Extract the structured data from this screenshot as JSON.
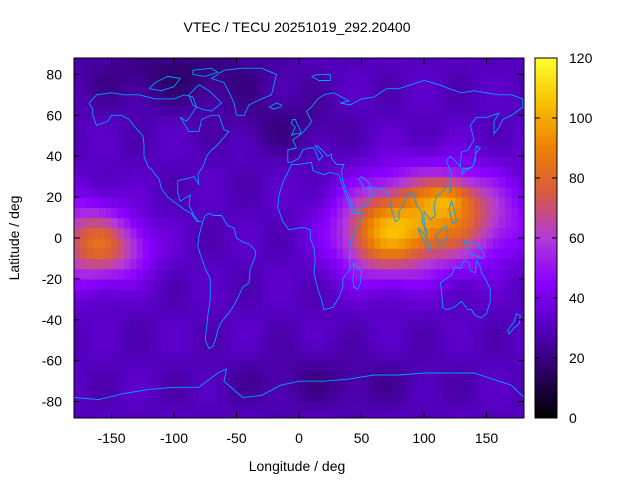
{
  "chart_data": {
    "type": "heatmap",
    "title": "VTEC / TECU 20251019_292.20400",
    "xlabel": "Longitude / deg",
    "ylabel": "Latitude / deg",
    "xlim": [
      -180,
      180
    ],
    "ylim": [
      -88,
      88
    ],
    "x_ticks": [
      -150,
      -100,
      -50,
      0,
      50,
      100,
      150
    ],
    "y_ticks": [
      -80,
      -60,
      -40,
      -20,
      0,
      20,
      40,
      60,
      80
    ],
    "colorbar": {
      "range": [
        0,
        120
      ],
      "ticks": [
        0,
        20,
        40,
        60,
        80,
        100,
        120
      ],
      "palette": [
        "#000000",
        "#2a0060",
        "#5500c0",
        "#8a00ff",
        "#b23ad8",
        "#d85a40",
        "#ee8000",
        "#f8c000",
        "#ffff30"
      ]
    },
    "grid": {
      "lon_step": 5,
      "lat_step": 5
    },
    "field_blobs": [
      {
        "lon": 110,
        "lat": 10,
        "peak": 58,
        "sigma_lon": 42,
        "sigma_lat": 16
      },
      {
        "lon": 120,
        "lat": 20,
        "peak": 22,
        "sigma_lon": 14,
        "sigma_lat": 6
      },
      {
        "lon": 65,
        "lat": 0,
        "peak": 40,
        "sigma_lon": 25,
        "sigma_lat": 14
      },
      {
        "lon": -170,
        "lat": -2,
        "peak": 42,
        "sigma_lon": 22,
        "sigma_lat": 14
      },
      {
        "lon": -140,
        "lat": -5,
        "peak": 22,
        "sigma_lon": 20,
        "sigma_lat": 10
      },
      {
        "lon": -95,
        "lat": 80,
        "peak": -12,
        "sigma_lon": 55,
        "sigma_lat": 12
      },
      {
        "lon": -10,
        "lat": 55,
        "peak": -8,
        "sigma_lon": 30,
        "sigma_lat": 10
      },
      {
        "lon": 20,
        "lat": -70,
        "peak": -7,
        "sigma_lon": 60,
        "sigma_lat": 10
      }
    ],
    "field_base": 30,
    "coastline_color": "#00a0ff"
  }
}
